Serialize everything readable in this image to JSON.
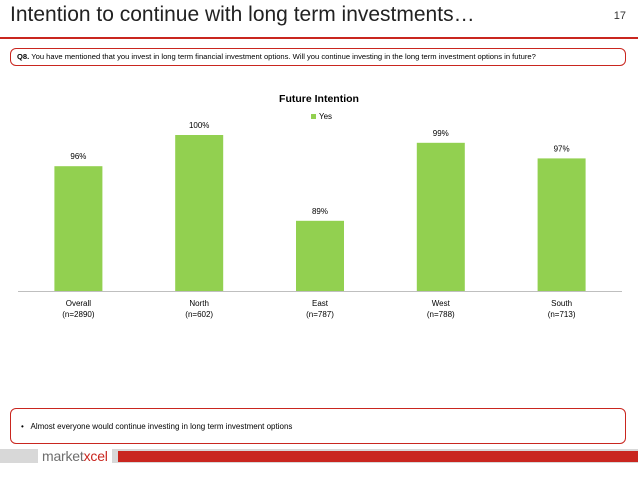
{
  "slide": {
    "title": "Intention to continue with long term investments…",
    "page_number": "17"
  },
  "question": {
    "label": "Q8.",
    "text": " You have mentioned that you invest in long term financial investment options. Will you continue investing in the long term investment options in future?"
  },
  "summary": {
    "bullet": "•",
    "text": "Almost everyone would continue investing in long term investment options"
  },
  "logo": {
    "part1": "market",
    "part2": "xcel"
  },
  "colors": {
    "bar": "#92d050",
    "accent": "#c9261f"
  },
  "chart_data": {
    "type": "bar",
    "title": "Future Intention",
    "legend": "Yes",
    "legend_position": "top-center",
    "categories": [
      "Overall",
      "North",
      "East",
      "West",
      "South"
    ],
    "sample_sizes": [
      "(n=2890)",
      "(n=602)",
      "(n=787)",
      "(n=788)",
      "(n=713)"
    ],
    "values": [
      96,
      100,
      89,
      99,
      97
    ],
    "value_labels": [
      "96%",
      "100%",
      "89%",
      "99%",
      "97%"
    ],
    "ylim": [
      80,
      100
    ],
    "xlabel": "",
    "ylabel": "",
    "grid": false
  }
}
